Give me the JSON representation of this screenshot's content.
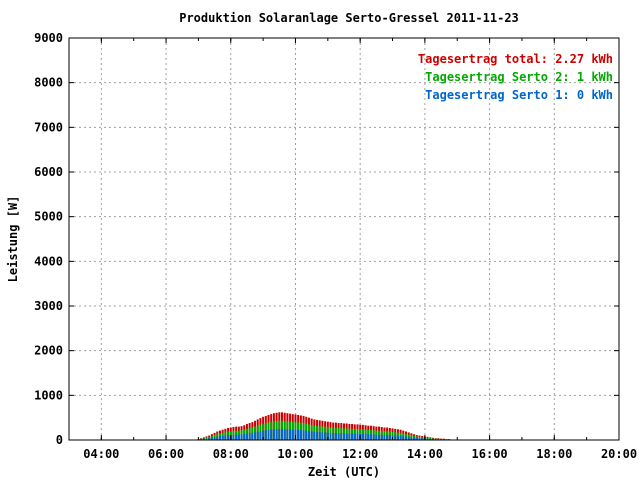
{
  "chart_data": {
    "type": "bar",
    "title": "Produktion Solaranlage Serto-Gressel 2011-11-23",
    "xlabel": "Zeit (UTC)",
    "ylabel": "Leistung [W]",
    "xlim": [
      3.0,
      20.0
    ],
    "ylim": [
      0,
      9000
    ],
    "x_ticks": [
      {
        "value": 4,
        "label": "04:00"
      },
      {
        "value": 6,
        "label": "06:00"
      },
      {
        "value": 8,
        "label": "08:00"
      },
      {
        "value": 10,
        "label": "10:00"
      },
      {
        "value": 12,
        "label": "12:00"
      },
      {
        "value": 14,
        "label": "14:00"
      },
      {
        "value": 16,
        "label": "16:00"
      },
      {
        "value": 18,
        "label": "18:00"
      },
      {
        "value": 20,
        "label": "20:00"
      }
    ],
    "y_ticks": [
      0,
      1000,
      2000,
      3000,
      4000,
      5000,
      6000,
      7000,
      8000,
      9000
    ],
    "grid": true,
    "legend_position": "top-right",
    "legend": [
      {
        "label": "Tagesertrag total: 2.27 kWh",
        "color": "#cc0000"
      },
      {
        "label": "Tagesertrag Serto 2: 1 kWh",
        "color": "#00aa00"
      },
      {
        "label": "Tagesertrag Serto 1: 0 kWh",
        "color": "#0066cc"
      }
    ],
    "colors": {
      "total": "#cc0000",
      "serto2": "#00aa00",
      "serto1": "#0066cc"
    },
    "bar_interval_hours": 0.0833,
    "x": [
      7.0,
      7.083,
      7.167,
      7.25,
      7.333,
      7.417,
      7.5,
      7.583,
      7.667,
      7.75,
      7.833,
      7.917,
      8.0,
      8.083,
      8.167,
      8.25,
      8.333,
      8.417,
      8.5,
      8.583,
      8.667,
      8.75,
      8.833,
      8.917,
      9.0,
      9.083,
      9.167,
      9.25,
      9.333,
      9.417,
      9.5,
      9.583,
      9.667,
      9.75,
      9.833,
      9.917,
      10.0,
      10.083,
      10.167,
      10.25,
      10.333,
      10.417,
      10.5,
      10.583,
      10.667,
      10.75,
      10.833,
      10.917,
      11.0,
      11.083,
      11.167,
      11.25,
      11.333,
      11.417,
      11.5,
      11.583,
      11.667,
      11.75,
      11.833,
      11.917,
      12.0,
      12.083,
      12.167,
      12.25,
      12.333,
      12.417,
      12.5,
      12.583,
      12.667,
      12.75,
      12.833,
      12.917,
      13.0,
      13.083,
      13.167,
      13.25,
      13.333,
      13.417,
      13.5,
      13.583,
      13.667,
      13.75,
      13.833,
      13.917,
      14.0,
      14.083,
      14.167,
      14.25,
      14.333,
      14.417,
      14.5,
      14.583,
      14.667,
      14.75,
      14.833,
      14.917,
      15.0
    ],
    "series": [
      {
        "name": "total",
        "values": [
          20,
          40,
          60,
          80,
          100,
          130,
          160,
          190,
          210,
          230,
          250,
          270,
          280,
          290,
          300,
          300,
          310,
          330,
          360,
          380,
          400,
          430,
          460,
          490,
          520,
          540,
          560,
          580,
          600,
          610,
          620,
          620,
          610,
          600,
          590,
          580,
          570,
          560,
          550,
          540,
          520,
          500,
          480,
          460,
          450,
          440,
          430,
          420,
          410,
          400,
          390,
          390,
          380,
          380,
          370,
          370,
          360,
          360,
          350,
          350,
          340,
          340,
          330,
          320,
          320,
          310,
          300,
          300,
          290,
          280,
          280,
          270,
          260,
          250,
          240,
          230,
          210,
          190,
          170,
          150,
          130,
          110,
          100,
          90,
          80,
          70,
          60,
          50,
          40,
          40,
          30,
          30,
          20,
          20,
          10,
          10,
          5
        ]
      },
      {
        "name": "serto2",
        "values": [
          14,
          28,
          42,
          56,
          70,
          91,
          112,
          133,
          147,
          161,
          175,
          189,
          196,
          203,
          210,
          210,
          217,
          231,
          252,
          266,
          280,
          301,
          322,
          343,
          364,
          378,
          392,
          406,
          420,
          427,
          434,
          434,
          427,
          420,
          413,
          406,
          399,
          392,
          385,
          378,
          364,
          350,
          336,
          322,
          315,
          308,
          301,
          294,
          287,
          280,
          273,
          273,
          266,
          266,
          259,
          259,
          252,
          252,
          245,
          245,
          238,
          238,
          231,
          224,
          224,
          217,
          210,
          210,
          203,
          196,
          196,
          189,
          182,
          175,
          168,
          161,
          147,
          133,
          119,
          105,
          91,
          77,
          70,
          63,
          56,
          49,
          42,
          35,
          28,
          28,
          21,
          21,
          14,
          14,
          7,
          7,
          3
        ]
      },
      {
        "name": "serto1",
        "values": [
          8,
          16,
          24,
          32,
          40,
          52,
          64,
          76,
          84,
          92,
          100,
          108,
          112,
          116,
          120,
          120,
          124,
          132,
          144,
          152,
          160,
          172,
          184,
          196,
          208,
          216,
          224,
          232,
          240,
          244,
          248,
          248,
          244,
          240,
          236,
          232,
          228,
          224,
          220,
          216,
          208,
          200,
          192,
          184,
          180,
          176,
          172,
          168,
          164,
          160,
          156,
          156,
          152,
          152,
          148,
          148,
          144,
          144,
          140,
          140,
          136,
          136,
          132,
          128,
          128,
          124,
          120,
          120,
          116,
          112,
          112,
          108,
          104,
          100,
          96,
          92,
          84,
          76,
          68,
          60,
          52,
          44,
          40,
          36,
          32,
          28,
          24,
          20,
          16,
          16,
          12,
          12,
          8,
          8,
          4,
          4,
          2
        ]
      }
    ]
  }
}
